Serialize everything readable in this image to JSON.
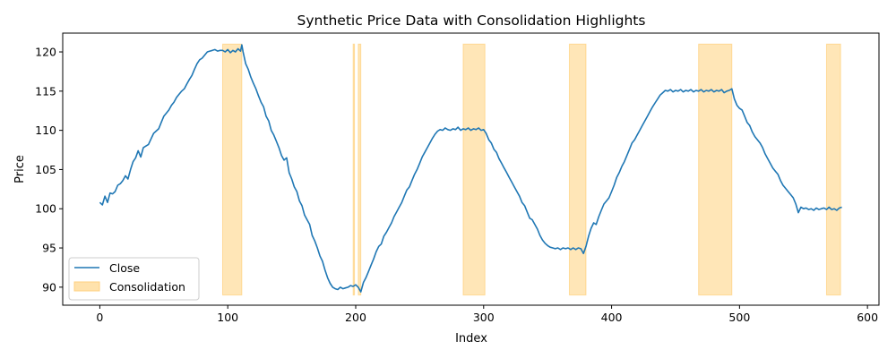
{
  "chart_data": {
    "type": "line",
    "title": "Synthetic Price Data with Consolidation Highlights",
    "xlabel": "Index",
    "ylabel": "Price",
    "xlim": [
      -29,
      609
    ],
    "ylim": [
      87.7,
      122.4
    ],
    "xticks": [
      0,
      100,
      200,
      300,
      400,
      500,
      600
    ],
    "yticks": [
      90,
      95,
      100,
      105,
      110,
      115,
      120
    ],
    "grid": false,
    "legend_placement": "lower-left",
    "series": [
      {
        "name": "Close",
        "color": "#1f77b4",
        "points": [
          [
            0,
            100.8
          ],
          [
            2,
            100.5
          ],
          [
            4,
            101.6
          ],
          [
            6,
            100.8
          ],
          [
            8,
            102.0
          ],
          [
            10,
            101.9
          ],
          [
            12,
            102.2
          ],
          [
            14,
            103.0
          ],
          [
            16,
            103.2
          ],
          [
            18,
            103.6
          ],
          [
            20,
            104.2
          ],
          [
            22,
            103.8
          ],
          [
            24,
            105.0
          ],
          [
            26,
            106.0
          ],
          [
            28,
            106.5
          ],
          [
            30,
            107.4
          ],
          [
            32,
            106.6
          ],
          [
            34,
            107.8
          ],
          [
            36,
            108.0
          ],
          [
            38,
            108.2
          ],
          [
            40,
            108.9
          ],
          [
            42,
            109.6
          ],
          [
            44,
            109.9
          ],
          [
            46,
            110.2
          ],
          [
            48,
            111.0
          ],
          [
            50,
            111.8
          ],
          [
            52,
            112.2
          ],
          [
            54,
            112.6
          ],
          [
            56,
            113.2
          ],
          [
            58,
            113.6
          ],
          [
            60,
            114.2
          ],
          [
            62,
            114.6
          ],
          [
            64,
            115.0
          ],
          [
            66,
            115.3
          ],
          [
            68,
            115.9
          ],
          [
            70,
            116.5
          ],
          [
            72,
            117.0
          ],
          [
            74,
            117.8
          ],
          [
            76,
            118.5
          ],
          [
            78,
            119.0
          ],
          [
            80,
            119.2
          ],
          [
            82,
            119.6
          ],
          [
            84,
            120.0
          ],
          [
            86,
            120.1
          ],
          [
            88,
            120.2
          ],
          [
            90,
            120.3
          ],
          [
            92,
            120.1
          ],
          [
            94,
            120.2
          ],
          [
            96,
            120.2
          ],
          [
            98,
            120.0
          ],
          [
            100,
            120.3
          ],
          [
            102,
            119.9
          ],
          [
            104,
            120.2
          ],
          [
            106,
            120.0
          ],
          [
            108,
            120.4
          ],
          [
            110,
            120.1
          ],
          [
            111,
            120.9
          ],
          [
            112,
            120.0
          ],
          [
            114,
            118.5
          ],
          [
            116,
            117.8
          ],
          [
            118,
            116.8
          ],
          [
            120,
            116.0
          ],
          [
            122,
            115.3
          ],
          [
            124,
            114.4
          ],
          [
            126,
            113.6
          ],
          [
            128,
            113.0
          ],
          [
            130,
            111.8
          ],
          [
            132,
            111.2
          ],
          [
            134,
            110.0
          ],
          [
            136,
            109.4
          ],
          [
            138,
            108.6
          ],
          [
            140,
            107.8
          ],
          [
            142,
            106.8
          ],
          [
            144,
            106.2
          ],
          [
            146,
            106.5
          ],
          [
            148,
            104.6
          ],
          [
            150,
            103.8
          ],
          [
            152,
            102.8
          ],
          [
            154,
            102.2
          ],
          [
            156,
            101.0
          ],
          [
            158,
            100.4
          ],
          [
            160,
            99.2
          ],
          [
            162,
            98.6
          ],
          [
            164,
            98.0
          ],
          [
            166,
            96.6
          ],
          [
            168,
            95.9
          ],
          [
            170,
            95.0
          ],
          [
            172,
            94.0
          ],
          [
            174,
            93.3
          ],
          [
            176,
            92.2
          ],
          [
            178,
            91.2
          ],
          [
            180,
            90.5
          ],
          [
            182,
            90.0
          ],
          [
            184,
            89.8
          ],
          [
            186,
            89.7
          ],
          [
            188,
            90.0
          ],
          [
            190,
            89.8
          ],
          [
            192,
            89.9
          ],
          [
            194,
            90.0
          ],
          [
            196,
            90.2
          ],
          [
            198,
            90.1
          ],
          [
            200,
            90.3
          ],
          [
            202,
            90.0
          ],
          [
            204,
            89.4
          ],
          [
            206,
            90.6
          ],
          [
            208,
            91.2
          ],
          [
            210,
            92.0
          ],
          [
            212,
            92.8
          ],
          [
            214,
            93.6
          ],
          [
            216,
            94.5
          ],
          [
            218,
            95.2
          ],
          [
            220,
            95.5
          ],
          [
            222,
            96.5
          ],
          [
            224,
            97.0
          ],
          [
            226,
            97.6
          ],
          [
            228,
            98.2
          ],
          [
            230,
            99.0
          ],
          [
            232,
            99.6
          ],
          [
            234,
            100.2
          ],
          [
            236,
            100.8
          ],
          [
            238,
            101.6
          ],
          [
            240,
            102.4
          ],
          [
            242,
            102.8
          ],
          [
            244,
            103.6
          ],
          [
            246,
            104.4
          ],
          [
            248,
            105.0
          ],
          [
            250,
            105.8
          ],
          [
            252,
            106.6
          ],
          [
            254,
            107.2
          ],
          [
            256,
            107.8
          ],
          [
            258,
            108.4
          ],
          [
            260,
            109.0
          ],
          [
            262,
            109.5
          ],
          [
            264,
            109.9
          ],
          [
            266,
            110.1
          ],
          [
            268,
            110.0
          ],
          [
            270,
            110.3
          ],
          [
            272,
            110.1
          ],
          [
            274,
            110.0
          ],
          [
            276,
            110.2
          ],
          [
            278,
            110.1
          ],
          [
            280,
            110.4
          ],
          [
            282,
            110.0
          ],
          [
            284,
            110.2
          ],
          [
            286,
            110.1
          ],
          [
            288,
            110.3
          ],
          [
            290,
            110.0
          ],
          [
            292,
            110.2
          ],
          [
            294,
            110.1
          ],
          [
            296,
            110.3
          ],
          [
            298,
            110.0
          ],
          [
            300,
            110.1
          ],
          [
            302,
            109.6
          ],
          [
            304,
            108.8
          ],
          [
            306,
            108.4
          ],
          [
            308,
            107.6
          ],
          [
            310,
            107.2
          ],
          [
            312,
            106.4
          ],
          [
            314,
            105.8
          ],
          [
            316,
            105.2
          ],
          [
            318,
            104.6
          ],
          [
            320,
            104.0
          ],
          [
            322,
            103.4
          ],
          [
            324,
            102.8
          ],
          [
            326,
            102.2
          ],
          [
            328,
            101.6
          ],
          [
            330,
            100.8
          ],
          [
            332,
            100.4
          ],
          [
            334,
            99.6
          ],
          [
            336,
            98.8
          ],
          [
            338,
            98.6
          ],
          [
            340,
            98.0
          ],
          [
            342,
            97.4
          ],
          [
            344,
            96.6
          ],
          [
            346,
            96.0
          ],
          [
            348,
            95.6
          ],
          [
            350,
            95.3
          ],
          [
            352,
            95.1
          ],
          [
            354,
            95.0
          ],
          [
            356,
            94.9
          ],
          [
            358,
            95.0
          ],
          [
            360,
            94.8
          ],
          [
            362,
            95.0
          ],
          [
            364,
            94.9
          ],
          [
            366,
            95.0
          ],
          [
            368,
            94.8
          ],
          [
            370,
            95.0
          ],
          [
            372,
            94.8
          ],
          [
            374,
            95.0
          ],
          [
            376,
            94.9
          ],
          [
            378,
            94.3
          ],
          [
            380,
            95.2
          ],
          [
            382,
            96.5
          ],
          [
            384,
            97.5
          ],
          [
            386,
            98.2
          ],
          [
            388,
            98.0
          ],
          [
            390,
            99.0
          ],
          [
            392,
            99.8
          ],
          [
            394,
            100.6
          ],
          [
            396,
            101.0
          ],
          [
            398,
            101.4
          ],
          [
            400,
            102.2
          ],
          [
            402,
            103.0
          ],
          [
            404,
            104.0
          ],
          [
            406,
            104.6
          ],
          [
            408,
            105.4
          ],
          [
            410,
            106.0
          ],
          [
            412,
            106.8
          ],
          [
            414,
            107.6
          ],
          [
            416,
            108.4
          ],
          [
            418,
            108.8
          ],
          [
            420,
            109.4
          ],
          [
            422,
            110.0
          ],
          [
            424,
            110.6
          ],
          [
            426,
            111.2
          ],
          [
            428,
            111.8
          ],
          [
            430,
            112.4
          ],
          [
            432,
            113.0
          ],
          [
            434,
            113.5
          ],
          [
            436,
            114.0
          ],
          [
            438,
            114.5
          ],
          [
            440,
            114.8
          ],
          [
            442,
            115.1
          ],
          [
            444,
            115.0
          ],
          [
            446,
            115.2
          ],
          [
            448,
            114.9
          ],
          [
            450,
            115.1
          ],
          [
            452,
            115.0
          ],
          [
            454,
            115.2
          ],
          [
            456,
            114.9
          ],
          [
            458,
            115.1
          ],
          [
            460,
            115.0
          ],
          [
            462,
            115.2
          ],
          [
            464,
            114.9
          ],
          [
            466,
            115.1
          ],
          [
            468,
            115.0
          ],
          [
            470,
            115.2
          ],
          [
            472,
            114.9
          ],
          [
            474,
            115.1
          ],
          [
            476,
            115.0
          ],
          [
            478,
            115.2
          ],
          [
            480,
            114.9
          ],
          [
            482,
            115.1
          ],
          [
            484,
            115.0
          ],
          [
            486,
            115.2
          ],
          [
            488,
            114.8
          ],
          [
            490,
            115.0
          ],
          [
            492,
            115.1
          ],
          [
            494,
            115.3
          ],
          [
            496,
            114.0
          ],
          [
            498,
            113.2
          ],
          [
            500,
            112.8
          ],
          [
            502,
            112.6
          ],
          [
            504,
            111.8
          ],
          [
            506,
            111.0
          ],
          [
            508,
            110.6
          ],
          [
            510,
            109.8
          ],
          [
            512,
            109.2
          ],
          [
            514,
            108.8
          ],
          [
            516,
            108.4
          ],
          [
            518,
            107.8
          ],
          [
            520,
            107.0
          ],
          [
            522,
            106.4
          ],
          [
            524,
            105.8
          ],
          [
            526,
            105.2
          ],
          [
            528,
            104.8
          ],
          [
            530,
            104.4
          ],
          [
            532,
            103.6
          ],
          [
            534,
            103.0
          ],
          [
            536,
            102.6
          ],
          [
            538,
            102.2
          ],
          [
            540,
            101.8
          ],
          [
            542,
            101.4
          ],
          [
            544,
            100.6
          ],
          [
            546,
            99.5
          ],
          [
            548,
            100.2
          ],
          [
            550,
            100.0
          ],
          [
            552,
            100.1
          ],
          [
            554,
            99.9
          ],
          [
            556,
            100.0
          ],
          [
            558,
            99.8
          ],
          [
            560,
            100.1
          ],
          [
            562,
            99.9
          ],
          [
            564,
            100.0
          ],
          [
            566,
            100.1
          ],
          [
            568,
            99.9
          ],
          [
            570,
            100.2
          ],
          [
            572,
            99.9
          ],
          [
            574,
            100.0
          ],
          [
            576,
            99.8
          ],
          [
            578,
            100.1
          ],
          [
            580,
            100.2
          ]
        ]
      }
    ],
    "consolidation": {
      "name": "Consolidation",
      "color": "#ffb020",
      "y_range": [
        89.0,
        121.0
      ],
      "intervals": [
        [
          96,
          111
        ],
        [
          198,
          199
        ],
        [
          202,
          204
        ],
        [
          284,
          301
        ],
        [
          367,
          380
        ],
        [
          468,
          494
        ],
        [
          568,
          579
        ]
      ]
    },
    "legend": [
      "Close",
      "Consolidation"
    ]
  }
}
